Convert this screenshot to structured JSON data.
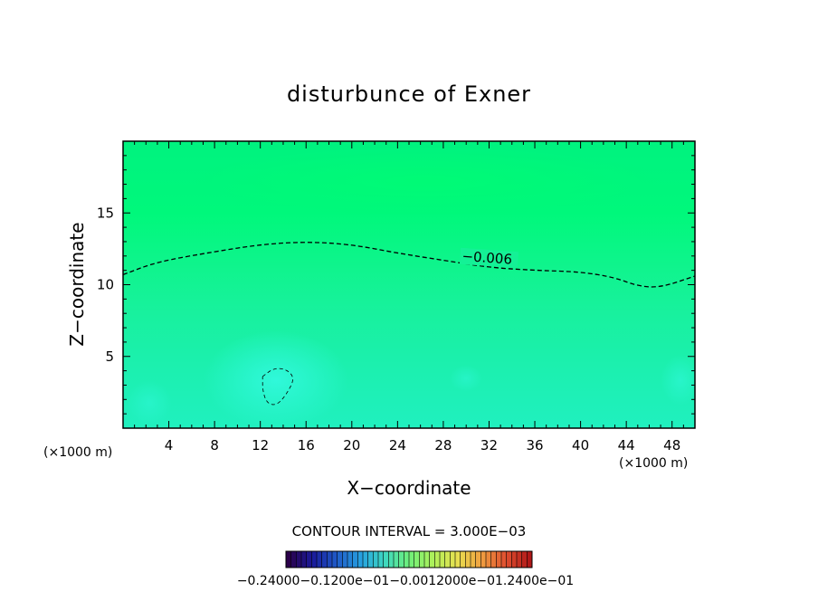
{
  "chart_data": {
    "type": "heatmap",
    "title": "disturbunce of Exner",
    "xlabel": "X−coordinate",
    "ylabel": "Z−coordinate",
    "x_unit": "(×1000 m)",
    "x_unit_right": "(×1000 m)",
    "xlim": [
      0,
      50
    ],
    "ylim": [
      0,
      20
    ],
    "x_ticks": [
      "4",
      "8",
      "12",
      "16",
      "20",
      "24",
      "28",
      "32",
      "36",
      "40",
      "44",
      "48"
    ],
    "x_tick_values": [
      4,
      8,
      12,
      16,
      20,
      24,
      28,
      32,
      36,
      40,
      44,
      48
    ],
    "y_ticks": [
      "5",
      "10",
      "15"
    ],
    "y_tick_values": [
      5,
      10,
      15
    ],
    "contour_interval_text": "CONTOUR INTERVAL = 3.000E−03",
    "contours": [
      {
        "level": -0.006,
        "label": "−0.006",
        "style": "dashed",
        "points": [
          [
            0,
            10.7
          ],
          [
            3,
            11.6
          ],
          [
            8,
            12.3
          ],
          [
            12,
            12.8
          ],
          [
            16,
            13.0
          ],
          [
            20,
            12.8
          ],
          [
            24,
            12.2
          ],
          [
            28,
            11.7
          ],
          [
            32,
            11.2
          ],
          [
            36,
            11.0
          ],
          [
            40,
            10.9
          ],
          [
            43,
            10.5
          ],
          [
            45,
            9.9
          ],
          [
            47,
            9.8
          ],
          [
            50,
            10.6
          ]
        ]
      },
      {
        "level": -0.003,
        "label": "",
        "style": "dashed-thin",
        "points": [
          [
            12.2,
            3.6
          ],
          [
            13.2,
            4.2
          ],
          [
            14.3,
            4.1
          ],
          [
            15.0,
            3.5
          ],
          [
            14.4,
            2.5
          ],
          [
            13.5,
            1.6
          ],
          [
            12.6,
            1.7
          ],
          [
            12.2,
            2.6
          ],
          [
            12.2,
            3.6
          ]
        ]
      }
    ],
    "colorbar": {
      "colors": [
        "#2b004a",
        "#1a1a9a",
        "#1f5ac8",
        "#27a0e0",
        "#3ed8c0",
        "#6ef07a",
        "#aef05a",
        "#e8e050",
        "#f0a040",
        "#e05030",
        "#b01818"
      ],
      "labels_overlapping": "−0.24000−0.1200e−01−0.0012000e−01.2400e−01",
      "label_texts": [
        "−0.24000",
        "−0.12000e−01",
        "0.00012000",
        "0.2400e−01"
      ]
    },
    "colors": {
      "upper": "#00f87e",
      "mid": "#18f0a0",
      "lower": "#1ff2bb",
      "anomaly": "#2ef5d0"
    }
  }
}
